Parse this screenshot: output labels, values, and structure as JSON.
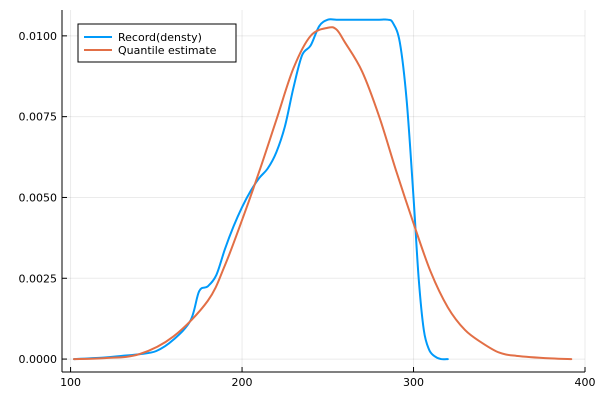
{
  "chart_data": {
    "type": "line",
    "title": "",
    "xlabel": "",
    "ylabel": "",
    "xlim": [
      95,
      400
    ],
    "ylim": [
      -0.0004,
      0.0108
    ],
    "xticks": [
      100,
      200,
      300,
      400
    ],
    "xtick_labels": [
      "100",
      "200",
      "300",
      "400"
    ],
    "yticks": [
      0,
      0.0025,
      0.005,
      0.0075,
      0.01
    ],
    "ytick_labels": [
      "0.0000",
      "0.0025",
      "0.0050",
      "0.0075",
      "0.0100"
    ],
    "grid": true,
    "legend": {
      "position": "top-left"
    },
    "series": [
      {
        "name": "Record(densty)",
        "color": "#009AFA",
        "x": [
          102,
          120,
          130,
          140,
          150,
          160,
          170,
          175,
          180,
          185,
          190,
          195,
          200,
          205,
          210,
          215,
          220,
          225,
          230,
          235,
          240,
          245,
          250,
          255,
          260,
          270,
          280,
          285,
          288,
          292,
          296,
          300,
          303,
          306,
          309,
          312,
          316,
          320
        ],
        "y": [
          0.0,
          5e-05,
          0.0001,
          0.00015,
          0.00025,
          0.0006,
          0.0012,
          0.0021,
          0.00225,
          0.0026,
          0.0034,
          0.0041,
          0.0047,
          0.0052,
          0.0056,
          0.0059,
          0.0064,
          0.0072,
          0.0084,
          0.0094,
          0.0097,
          0.0103,
          0.0105,
          0.0105,
          0.0105,
          0.0105,
          0.0105,
          0.0105,
          0.0104,
          0.0098,
          0.008,
          0.005,
          0.0025,
          0.0009,
          0.0003,
          0.0001,
          0.0,
          0.0
        ]
      },
      {
        "name": "Quantile estimate",
        "color": "#E26F46",
        "x": [
          102,
          120,
          140,
          160,
          180,
          190,
          200,
          210,
          220,
          230,
          240,
          250,
          255,
          260,
          270,
          280,
          290,
          300,
          310,
          320,
          330,
          340,
          350,
          360,
          380,
          392
        ],
        "y": [
          0.0,
          3e-05,
          0.00015,
          0.0007,
          0.0018,
          0.0029,
          0.0043,
          0.0058,
          0.0074,
          0.009,
          0.01,
          0.01025,
          0.0102,
          0.0098,
          0.0089,
          0.0075,
          0.0058,
          0.0042,
          0.0027,
          0.0016,
          0.0009,
          0.0005,
          0.0002,
          0.0001,
          2e-05,
          0.0
        ]
      }
    ]
  }
}
